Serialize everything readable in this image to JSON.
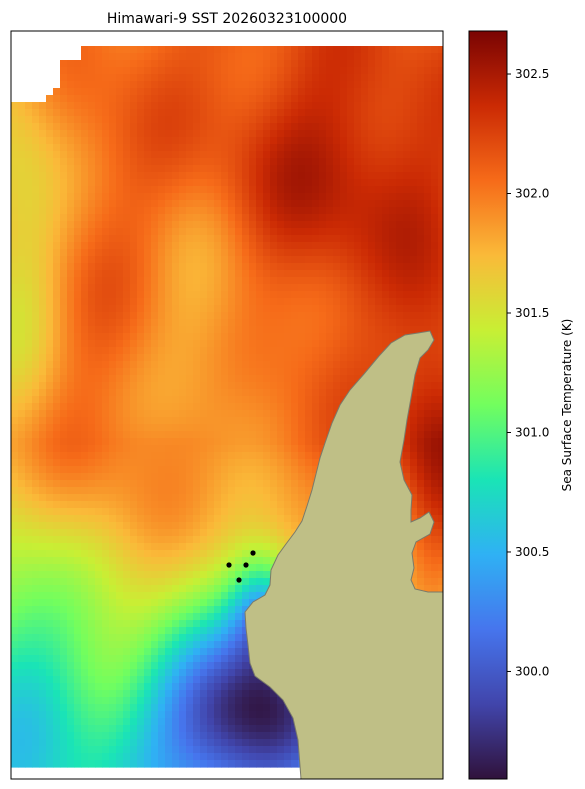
{
  "chart_data": {
    "type": "heatmap",
    "title": "Himawari-9 SST 20260323100000",
    "colorbar": {
      "label": "Sea Surface Temperature (K)",
      "colormap": "turbo",
      "range": [
        299.55,
        302.68
      ],
      "ticks": [
        {
          "value": 300.0,
          "label": "300.0"
        },
        {
          "value": 300.5,
          "label": "300.5"
        },
        {
          "value": 301.0,
          "label": "301.0"
        },
        {
          "value": 301.5,
          "label": "301.5"
        },
        {
          "value": 302.0,
          "label": "302.0"
        },
        {
          "value": 302.5,
          "label": "302.5"
        }
      ]
    },
    "grid": false,
    "land_color": "#bfbf86",
    "coast_color": "#7a7a6a",
    "marker_color": "#000000",
    "markers_count": 4
  }
}
